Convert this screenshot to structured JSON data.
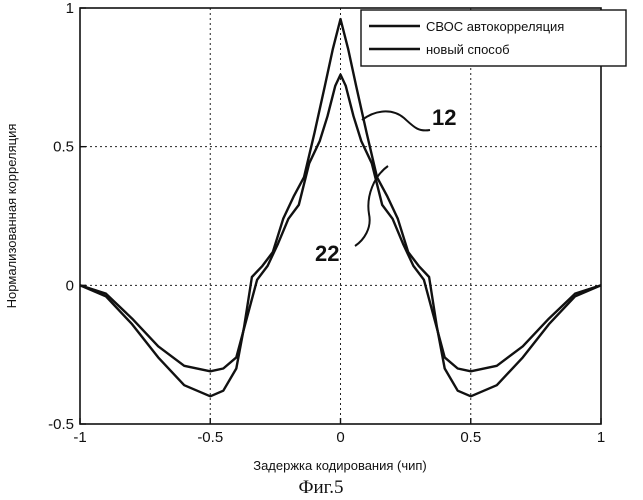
{
  "chart_data": {
    "type": "line",
    "xlabel": "Задержка кодирования (чип)",
    "ylabel": "Нормализованная корреляция",
    "xlim": [
      -1,
      1
    ],
    "ylim": [
      -0.5,
      1
    ],
    "grid": true,
    "xticks": [
      "-1",
      "-0.5",
      "0",
      "0.5",
      "1"
    ],
    "yticks": [
      "-0.5",
      "0",
      "0.5",
      "1"
    ],
    "xtick_values": [
      -1,
      -0.5,
      0,
      0.5,
      1
    ],
    "ytick_values": [
      -0.5,
      0,
      0.5,
      1
    ],
    "legend_position": "top-right",
    "series": [
      {
        "name": "СВОС автокорреляция",
        "x": [
          -1,
          -0.9,
          -0.8,
          -0.7,
          -0.6,
          -0.5,
          -0.45,
          -0.4,
          -0.37,
          -0.34,
          -0.3,
          -0.26,
          -0.22,
          -0.18,
          -0.14,
          -0.1,
          -0.06,
          -0.03,
          0,
          0.03,
          0.06,
          0.1,
          0.14,
          0.18,
          0.22,
          0.26,
          0.3,
          0.34,
          0.37,
          0.4,
          0.45,
          0.5,
          0.6,
          0.7,
          0.8,
          0.9,
          1
        ],
        "y": [
          0,
          -0.04,
          -0.14,
          -0.26,
          -0.36,
          -0.4,
          -0.38,
          -0.3,
          -0.15,
          0.03,
          0.07,
          0.12,
          0.24,
          0.32,
          0.39,
          0.55,
          0.72,
          0.85,
          0.96,
          0.85,
          0.72,
          0.55,
          0.39,
          0.32,
          0.24,
          0.12,
          0.07,
          0.03,
          -0.15,
          -0.3,
          -0.38,
          -0.4,
          -0.36,
          -0.26,
          -0.14,
          -0.04,
          0
        ]
      },
      {
        "name": "новый способ",
        "x": [
          -1,
          -0.9,
          -0.8,
          -0.7,
          -0.6,
          -0.5,
          -0.45,
          -0.4,
          -0.36,
          -0.32,
          -0.28,
          -0.24,
          -0.2,
          -0.16,
          -0.12,
          -0.08,
          -0.05,
          -0.02,
          0,
          0.02,
          0.05,
          0.08,
          0.12,
          0.16,
          0.2,
          0.24,
          0.28,
          0.32,
          0.36,
          0.4,
          0.45,
          0.5,
          0.6,
          0.7,
          0.8,
          0.9,
          1
        ],
        "y": [
          0,
          -0.03,
          -0.12,
          -0.22,
          -0.29,
          -0.31,
          -0.3,
          -0.26,
          -0.12,
          0.02,
          0.07,
          0.15,
          0.24,
          0.29,
          0.44,
          0.52,
          0.61,
          0.72,
          0.76,
          0.72,
          0.61,
          0.52,
          0.44,
          0.29,
          0.24,
          0.15,
          0.07,
          0.02,
          -0.12,
          -0.26,
          -0.3,
          -0.31,
          -0.29,
          -0.22,
          -0.12,
          -0.03,
          0
        ]
      }
    ],
    "annotations": [
      "12",
      "22"
    ],
    "caption": "Фиг.5"
  }
}
